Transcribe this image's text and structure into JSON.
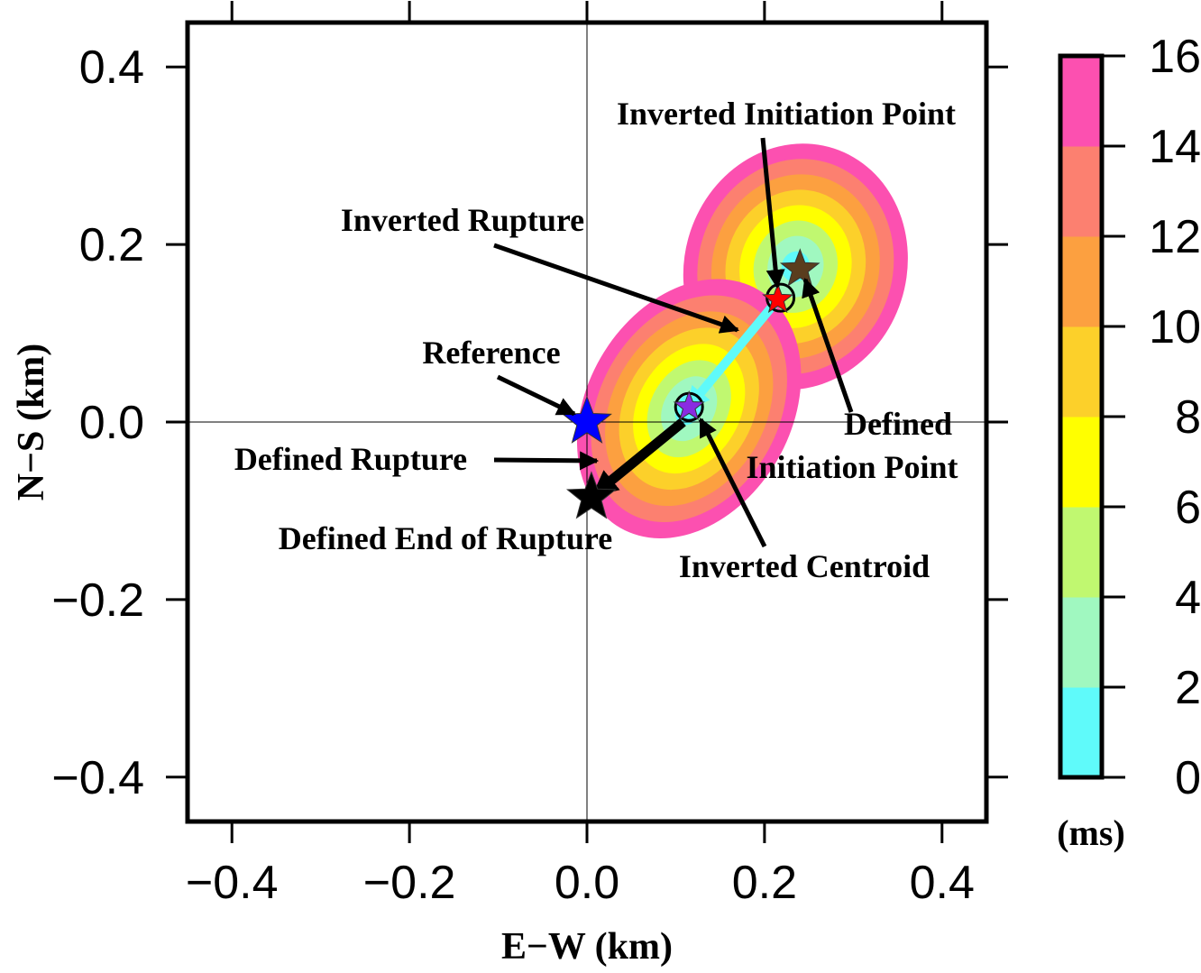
{
  "chart_data": {
    "type": "contour-map",
    "xlabel": "E−W (km)",
    "ylabel": "N−S (km)",
    "xlim": [
      -0.45,
      0.45
    ],
    "ylim": [
      -0.45,
      0.45
    ],
    "x_ticks": [
      -0.4,
      -0.2,
      0.0,
      0.2,
      0.4
    ],
    "y_ticks": [
      -0.4,
      -0.2,
      0.0,
      0.2,
      0.4
    ],
    "x_tick_labels": [
      "−0.4",
      "−0.2",
      "0.0",
      "0.2",
      "0.4"
    ],
    "y_tick_labels": [
      "0.4",
      "0.2",
      "0.0",
      "−0.2",
      "−0.4"
    ],
    "zero_lines": true,
    "colorbar": {
      "unit_label": "(ms)",
      "range": [
        0,
        16
      ],
      "ticks": [
        0,
        2,
        4,
        6,
        8,
        10,
        12,
        14,
        16
      ],
      "tick_labels": [
        "0",
        "2",
        "4",
        "6",
        "8",
        "10",
        "12",
        "14",
        "16"
      ],
      "colors": [
        "#5ffafa",
        "#a0f8c0",
        "#c0f870",
        "#ffff00",
        "#fcd02a",
        "#fca040",
        "#fc8070",
        "#fc50b0"
      ]
    },
    "contour_fields": [
      {
        "center": [
          0.235,
          0.175
        ],
        "semi_axes_km": [
          0.125,
          0.14
        ],
        "rotation_deg": 18,
        "levels": 8
      },
      {
        "center": [
          0.115,
          0.015
        ],
        "semi_axes_km": [
          0.115,
          0.155
        ],
        "rotation_deg": 30,
        "levels": 8
      }
    ],
    "markers": [
      {
        "label": "Reference",
        "x": 0.0,
        "y": 0.0,
        "color": "#0000ff",
        "marker": "star"
      },
      {
        "label": "Defined End of Rupture",
        "x": 0.005,
        "y": -0.085,
        "color": "#000000",
        "marker": "star"
      },
      {
        "label": "Inverted Centroid",
        "x": 0.115,
        "y": 0.017,
        "color": "#8a2be2",
        "marker": "star"
      },
      {
        "label": "Inverted Initiation Point",
        "x": 0.215,
        "y": 0.138,
        "color": "#ff0000",
        "marker": "star"
      },
      {
        "label": "Defined Initiation Point",
        "x": 0.24,
        "y": 0.172,
        "color": "#5a3d1e",
        "marker": "star"
      }
    ],
    "rupture_vectors": [
      {
        "label": "Inverted Rupture",
        "from": [
          0.215,
          0.138
        ],
        "to": [
          0.115,
          0.017
        ],
        "color": "#5ffafa"
      },
      {
        "label": "Defined Rupture",
        "from": [
          0.108,
          0.0
        ],
        "to": [
          0.01,
          -0.08
        ],
        "color": "#000000"
      }
    ],
    "annotations": [
      {
        "text": "Inverted Initiation Point"
      },
      {
        "text": "Inverted Rupture"
      },
      {
        "text": "Reference"
      },
      {
        "text": "Defined"
      },
      {
        "text": "Initiation Point"
      },
      {
        "text": "Defined Rupture"
      },
      {
        "text": "Defined End of Rupture"
      },
      {
        "text": "Inverted Centroid"
      }
    ]
  }
}
